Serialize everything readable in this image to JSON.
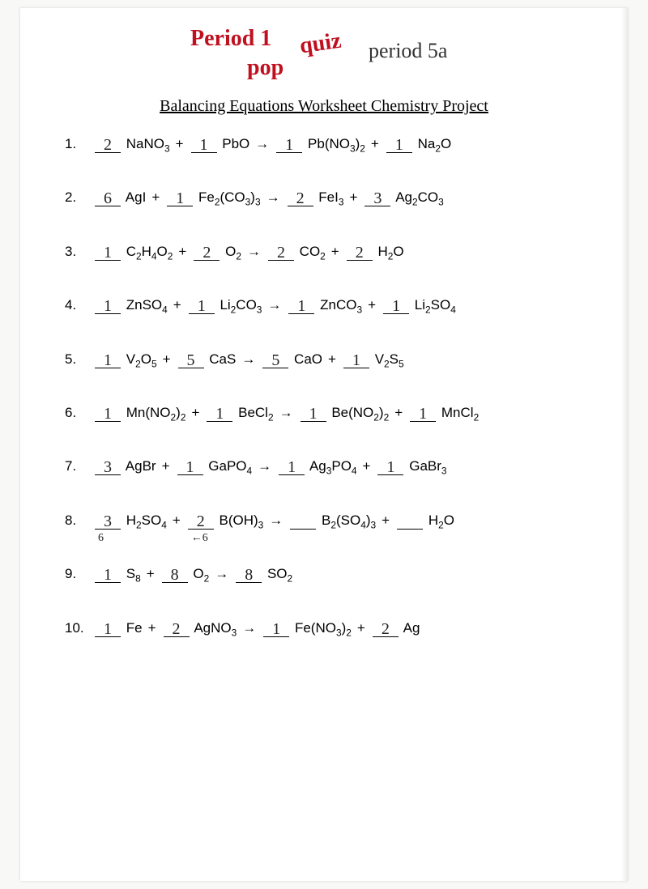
{
  "handwriting": {
    "red_line1": "Period 1",
    "red_line2": "pop",
    "red_line3": "quiz",
    "black": "period 5a"
  },
  "title": "Balancing Equations Worksheet Chemistry Project",
  "problems": [
    {
      "num": "1.",
      "terms": [
        {
          "coef": "2",
          "formula": "NaNO",
          "sub": "3"
        },
        {
          "op": "+"
        },
        {
          "coef": "1",
          "formula": "PbO"
        },
        {
          "op": "→"
        },
        {
          "coef": "1",
          "formula": "Pb(NO",
          "sub": "3",
          "tail": ")",
          "sub2": "2"
        },
        {
          "op": "+"
        },
        {
          "coef": "1",
          "formula": "Na",
          "sub": "2",
          "tail": "O"
        }
      ]
    },
    {
      "num": "2.",
      "terms": [
        {
          "coef": "6",
          "formula": "AgI"
        },
        {
          "op": "+"
        },
        {
          "coef": "1",
          "formula": "Fe",
          "sub": "2",
          "tail": "(CO",
          "sub2": "3",
          "tail2": ")",
          "sub3": "3"
        },
        {
          "op": "→"
        },
        {
          "coef": "2",
          "formula": "FeI",
          "sub": "3"
        },
        {
          "op": "+"
        },
        {
          "coef": "3",
          "formula": "Ag",
          "sub": "2",
          "tail": "CO",
          "sub2": "3"
        }
      ]
    },
    {
      "num": "3.",
      "terms": [
        {
          "coef": "1",
          "formula": "C",
          "sub": "2",
          "tail": "H",
          "sub2": "4",
          "tail2": "O",
          "sub3": "2"
        },
        {
          "op": "+"
        },
        {
          "coef": "2",
          "formula": "O",
          "sub": "2"
        },
        {
          "op": "→"
        },
        {
          "coef": "2",
          "formula": "CO",
          "sub": "2"
        },
        {
          "op": "+"
        },
        {
          "coef": "2",
          "formula": "H",
          "sub": "2",
          "tail": "O"
        }
      ]
    },
    {
      "num": "4.",
      "terms": [
        {
          "coef": "1",
          "formula": "ZnSO",
          "sub": "4"
        },
        {
          "op": "+"
        },
        {
          "coef": "1",
          "formula": "Li",
          "sub": "2",
          "tail": "CO",
          "sub2": "3"
        },
        {
          "op": "→"
        },
        {
          "coef": "1",
          "formula": "ZnCO",
          "sub": "3"
        },
        {
          "op": "+"
        },
        {
          "coef": "1",
          "formula": "Li",
          "sub": "2",
          "tail": "SO",
          "sub2": "4"
        }
      ]
    },
    {
      "num": "5.",
      "terms": [
        {
          "coef": "1",
          "formula": "V",
          "sub": "2",
          "tail": "O",
          "sub2": "5"
        },
        {
          "op": "+"
        },
        {
          "coef": "5",
          "formula": "CaS"
        },
        {
          "op": "→"
        },
        {
          "coef": "5",
          "formula": "CaO"
        },
        {
          "op": "+"
        },
        {
          "coef": "1",
          "formula": "V",
          "sub": "2",
          "tail": "S",
          "sub2": "5"
        }
      ]
    },
    {
      "num": "6.",
      "terms": [
        {
          "coef": "1",
          "formula": "Mn(NO",
          "sub": "2",
          "tail": ")",
          "sub2": "2"
        },
        {
          "op": "+"
        },
        {
          "coef": "1",
          "formula": "BeCl",
          "sub": "2"
        },
        {
          "op": "→"
        },
        {
          "coef": "1",
          "formula": "Be(NO",
          "sub": "2",
          "tail": ")",
          "sub2": "2"
        },
        {
          "op": "+"
        },
        {
          "coef": "1",
          "formula": "MnCl",
          "sub": "2"
        }
      ]
    },
    {
      "num": "7.",
      "terms": [
        {
          "coef": "3",
          "formula": "AgBr"
        },
        {
          "op": "+"
        },
        {
          "coef": "1",
          "formula": "GaPO",
          "sub": "4"
        },
        {
          "op": "→"
        },
        {
          "coef": "1",
          "formula": "Ag",
          "sub": "3",
          "tail": "PO",
          "sub2": "4"
        },
        {
          "op": "+"
        },
        {
          "coef": "1",
          "formula": "GaBr",
          "sub": "3"
        }
      ]
    },
    {
      "num": "8.",
      "terms": [
        {
          "coef": "3",
          "formula": "H",
          "sub": "2",
          "tail": "SO",
          "sub2": "4",
          "note": "6"
        },
        {
          "op": "+"
        },
        {
          "coef": "2",
          "formula": "B(OH)",
          "sub": "3",
          "note": "6",
          "note_pre": "←"
        },
        {
          "op": "→"
        },
        {
          "coef": "",
          "formula": "B",
          "sub": "2",
          "tail": "(SO",
          "sub2": "4",
          "tail2": ")",
          "sub3": "3"
        },
        {
          "op": "+"
        },
        {
          "coef": "",
          "formula": "H",
          "sub": "2",
          "tail": "O"
        }
      ]
    },
    {
      "num": "9.",
      "terms": [
        {
          "coef": "1",
          "formula": "S",
          "sub": "8"
        },
        {
          "op": "+"
        },
        {
          "coef": "8",
          "formula": "O",
          "sub": "2"
        },
        {
          "op": "→"
        },
        {
          "coef": "8",
          "formula": "SO",
          "sub": "2"
        }
      ]
    },
    {
      "num": "10.",
      "terms": [
        {
          "coef": "1",
          "formula": "Fe"
        },
        {
          "op": "+"
        },
        {
          "coef": "2",
          "formula": "AgNO",
          "sub": "3"
        },
        {
          "op": "→"
        },
        {
          "coef": "1",
          "formula": "Fe(NO",
          "sub": "3",
          "tail": ")",
          "sub2": "2"
        },
        {
          "op": "+"
        },
        {
          "coef": "2",
          "formula": "Ag"
        }
      ]
    }
  ]
}
